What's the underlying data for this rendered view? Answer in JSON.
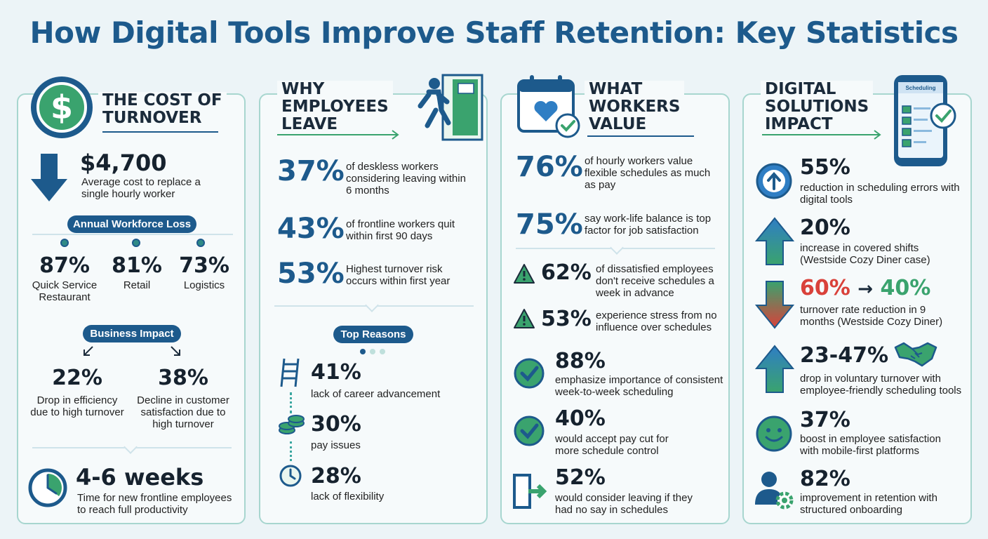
{
  "title": "How Digital Tools Improve Staff Retention: Key Statistics",
  "panel1": {
    "heading": "THE COST OF\nTURNOVER",
    "cost_value": "$4,700",
    "cost_desc": "Average cost to replace a single hourly worker",
    "loss_label": "Annual Workforce Loss",
    "loss": [
      {
        "value": "87%",
        "label": "Quick Service Restaurant"
      },
      {
        "value": "81%",
        "label": "Retail"
      },
      {
        "value": "73%",
        "label": "Logistics"
      }
    ],
    "impact_label": "Business Impact",
    "impact": [
      {
        "value": "22%",
        "label": "Drop in efficiency due to high turnover"
      },
      {
        "value": "38%",
        "label": "Decline in customer satisfaction due to high turnover"
      }
    ],
    "weeks_value": "4-6 weeks",
    "weeks_desc": "Time for new frontline employees to reach full productivity"
  },
  "panel2": {
    "heading": "WHY\nEMPLOYEES\nLEAVE",
    "stats": [
      {
        "value": "37%",
        "desc": "of deskless workers considering leaving within 6 months"
      },
      {
        "value": "43%",
        "desc": "of frontline workers quit within first 90 days"
      },
      {
        "value": "53%",
        "desc": "Highest turnover risk occurs within first year"
      }
    ],
    "reasons_label": "Top Reasons",
    "reasons": [
      {
        "value": "41%",
        "desc": "lack of career advancement",
        "icon": "ladder-icon"
      },
      {
        "value": "30%",
        "desc": "pay issues",
        "icon": "coins-icon"
      },
      {
        "value": "28%",
        "desc": "lack of flexibility",
        "icon": "clock-icon"
      }
    ]
  },
  "panel3": {
    "heading": "WHAT\nWORKERS\nVALUE",
    "stats": [
      {
        "value": "76%",
        "desc": "of hourly workers value flexible schedules as much as pay"
      },
      {
        "value": "75%",
        "desc": "say work-life balance is top factor for job satisfaction"
      }
    ],
    "warnings": [
      {
        "value": "62%",
        "desc": "of dissatisfied employees don't receive schedules a week in advance"
      },
      {
        "value": "53%",
        "desc": "experience stress from no influence over schedules"
      }
    ],
    "checks": [
      {
        "value": "88%",
        "desc": "emphasize importance of consistent week-to-week scheduling"
      },
      {
        "value": "40%",
        "desc": "would accept pay cut for more schedule control"
      },
      {
        "value": "52%",
        "desc": "would consider leaving if they had no say in schedules"
      }
    ]
  },
  "panel4": {
    "heading": "DIGITAL\nSOLUTIONS\nIMPACT",
    "phone_label": "Scheduling",
    "stats": [
      {
        "value": "55%",
        "desc": "reduction in scheduling errors with digital tools"
      },
      {
        "value": "20%",
        "desc": "increase in covered shifts (Westside Cozy Diner case)"
      },
      {
        "value_from": "60%",
        "arrow": "→",
        "value_to": "40%",
        "desc": "turnover rate reduction in 9 months (Westside Cozy Diner)"
      },
      {
        "value": "23-47%",
        "desc": "drop in voluntary turnover with employee-friendly scheduling tools"
      },
      {
        "value": "37%",
        "desc": "boost in employee satisfaction with mobile-first platforms"
      },
      {
        "value": "82%",
        "desc": "improvement in retention with structured onboarding"
      }
    ]
  },
  "colors": {
    "navy": "#1d5a8c",
    "teal": "#2f8a86",
    "green": "#3aa36e",
    "red": "#d9413a",
    "border": "#a7d6cf"
  }
}
